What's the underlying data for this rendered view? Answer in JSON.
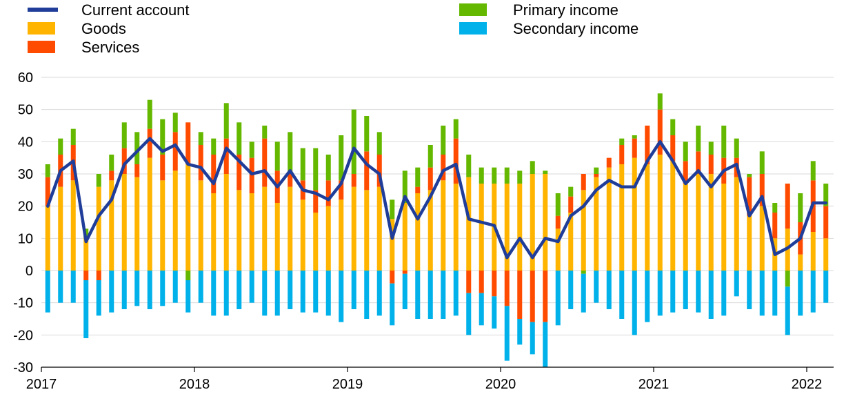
{
  "chart_data": {
    "type": "bar",
    "subtype": "stacked bar with line overlay",
    "x_axis": {
      "start": "2017-01",
      "tick_labels": [
        "2017",
        "2018",
        "2019",
        "2020",
        "2021",
        "2022"
      ]
    },
    "ylim": [
      -30,
      60
    ],
    "y_ticks": [
      60,
      50,
      40,
      30,
      20,
      10,
      0,
      -10,
      -20,
      -30
    ],
    "grid": "horizontal",
    "legend": {
      "placement": "top",
      "items": [
        {
          "key": "current_account",
          "label": "Current account",
          "kind": "line",
          "color": "#1f3d99"
        },
        {
          "key": "goods",
          "label": "Goods",
          "kind": "bar",
          "color": "#ffb400"
        },
        {
          "key": "services",
          "label": "Services",
          "kind": "bar",
          "color": "#ff4b00"
        },
        {
          "key": "primary_income",
          "label": "Primary income",
          "kind": "bar",
          "color": "#65b800"
        },
        {
          "key": "secondary_income",
          "label": "Secondary income",
          "kind": "bar",
          "color": "#00b1ea"
        }
      ]
    },
    "months": [
      "2017-01",
      "2017-02",
      "2017-03",
      "2017-04",
      "2017-05",
      "2017-06",
      "2017-07",
      "2017-08",
      "2017-09",
      "2017-10",
      "2017-11",
      "2017-12",
      "2018-01",
      "2018-02",
      "2018-03",
      "2018-04",
      "2018-05",
      "2018-06",
      "2018-07",
      "2018-08",
      "2018-09",
      "2018-10",
      "2018-11",
      "2018-12",
      "2019-01",
      "2019-02",
      "2019-03",
      "2019-04",
      "2019-05",
      "2019-06",
      "2019-07",
      "2019-08",
      "2019-09",
      "2019-10",
      "2019-11",
      "2019-12",
      "2020-01",
      "2020-02",
      "2020-03",
      "2020-04",
      "2020-05",
      "2020-06",
      "2020-07",
      "2020-08",
      "2020-09",
      "2020-10",
      "2020-11",
      "2020-12",
      "2021-01",
      "2021-02",
      "2021-03",
      "2021-04",
      "2021-05",
      "2021-06",
      "2021-07",
      "2021-08",
      "2021-09",
      "2021-10",
      "2021-11",
      "2021-12",
      "2022-01",
      "2022-02"
    ],
    "series": [
      {
        "key": "goods",
        "name": "Goods",
        "values": [
          20,
          26,
          28,
          10,
          26,
          28,
          30,
          29,
          35,
          28,
          31,
          33,
          28,
          24,
          30,
          25,
          24,
          26,
          21,
          26,
          22,
          18,
          20,
          22,
          26,
          25,
          26,
          16,
          21,
          24,
          25,
          28,
          27,
          29,
          27,
          27,
          27,
          27,
          30,
          30,
          13,
          18,
          25,
          29,
          32,
          33,
          35,
          33,
          36,
          34,
          27,
          30,
          30,
          27,
          29,
          17,
          20,
          10,
          13,
          5,
          12,
          10
        ]
      },
      {
        "key": "services",
        "name": "Services",
        "values": [
          9,
          10,
          11,
          -3,
          -3,
          3,
          8,
          4,
          9,
          8,
          12,
          13,
          11,
          12,
          11,
          11,
          11,
          15,
          10,
          5,
          6,
          7,
          8,
          6,
          4,
          12,
          10,
          -4,
          -1,
          2,
          7,
          8,
          14,
          -7,
          -7,
          -8,
          -11,
          -15,
          -16,
          -16,
          4,
          5,
          5,
          1,
          3,
          6,
          6,
          12,
          14,
          8,
          7,
          7,
          6,
          8,
          6,
          12,
          10,
          8,
          14,
          10,
          16,
          10
        ]
      },
      {
        "key": "primary_income",
        "name": "Primary income",
        "values": [
          4,
          5,
          5,
          3,
          4,
          5,
          8,
          10,
          9,
          11,
          6,
          -3,
          4,
          5,
          11,
          10,
          5,
          4,
          9,
          12,
          10,
          13,
          8,
          14,
          20,
          11,
          7,
          6,
          10,
          6,
          7,
          9,
          6,
          7,
          5,
          5,
          5,
          4,
          4,
          1,
          7,
          3,
          -1,
          2,
          0,
          2,
          1,
          0,
          5,
          5,
          6,
          8,
          4,
          10,
          6,
          1,
          7,
          3,
          -5,
          9,
          6,
          7
        ]
      },
      {
        "key": "secondary_income",
        "name": "Secondary income",
        "values": [
          -13,
          -10,
          -10,
          -18,
          -11,
          -13,
          -12,
          -11,
          -12,
          -11,
          -10,
          -10,
          -10,
          -14,
          -14,
          -12,
          -10,
          -14,
          -14,
          -12,
          -13,
          -13,
          -14,
          -16,
          -12,
          -15,
          -14,
          -13,
          -11,
          -15,
          -15,
          -15,
          -14,
          -13,
          -10,
          -10,
          -17,
          -8,
          -10,
          -14,
          -17,
          -12,
          -12,
          -10,
          -12,
          -15,
          -20,
          -16,
          -14,
          -13,
          -12,
          -13,
          -15,
          -14,
          -8,
          -12,
          -14,
          -14,
          -15,
          -14,
          -13,
          -10
        ]
      },
      {
        "key": "current_account",
        "name": "Current account",
        "values": [
          20,
          31,
          34,
          9,
          17,
          22,
          33,
          37,
          41,
          37,
          39,
          33,
          32,
          27,
          38,
          34,
          30,
          31,
          26,
          31,
          25,
          24,
          22,
          27,
          38,
          33,
          30,
          10,
          23,
          16,
          23,
          31,
          33,
          16,
          15,
          14,
          4,
          10,
          4,
          10,
          9,
          17,
          20,
          25,
          28,
          26,
          26,
          34,
          40,
          34,
          27,
          31,
          26,
          31,
          33,
          17,
          23,
          5,
          7,
          10,
          21,
          21
        ]
      }
    ]
  }
}
